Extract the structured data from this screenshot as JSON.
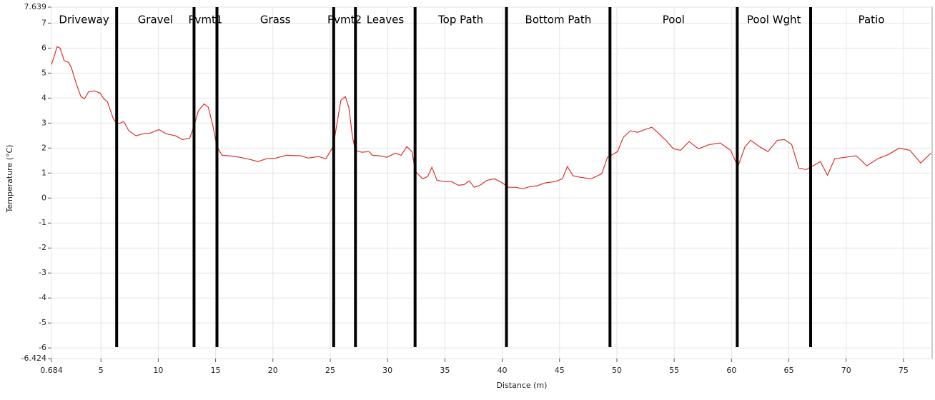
{
  "chart_data": {
    "type": "line",
    "xlabel": "Distance (m)",
    "ylabel": "Temperature (°C)",
    "xlim": [
      0.684,
      77.5
    ],
    "ylim": [
      -6.424,
      7.639
    ],
    "xticks": [
      0.684,
      5,
      10,
      15,
      20,
      25,
      30,
      35,
      40,
      45,
      50,
      55,
      60,
      65,
      70,
      75
    ],
    "yticks": [
      7.639,
      7,
      6,
      5,
      4,
      3,
      2,
      1,
      0,
      -1,
      -2,
      -3,
      -4,
      -5,
      -6,
      -6.424
    ],
    "grid": true,
    "color": "#d9312b",
    "x": [
      0.684,
      1.18,
      1.43,
      1.8,
      2.18,
      2.43,
      2.87,
      3.25,
      3.56,
      3.93,
      4.43,
      4.93,
      5.25,
      5.56,
      6.06,
      6.37,
      6.68,
      7.0,
      7.43,
      8.06,
      8.68,
      9.31,
      10.06,
      10.68,
      11.5,
      12.12,
      12.75,
      13.12,
      13.5,
      14.0,
      14.37,
      14.75,
      15.12,
      15.56,
      16.18,
      17.12,
      18.06,
      18.68,
      19.43,
      20.25,
      21.18,
      22.43,
      23.06,
      24.0,
      24.62,
      25.25,
      25.56,
      25.93,
      26.31,
      26.62,
      26.93,
      27.18,
      27.75,
      28.37,
      28.68,
      29.31,
      29.93,
      30.68,
      31.18,
      31.68,
      32.12,
      32.43,
      33.06,
      33.5,
      33.87,
      34.31,
      34.93,
      35.56,
      36.18,
      36.68,
      37.12,
      37.56,
      38.06,
      38.68,
      39.31,
      39.93,
      40.56,
      41.18,
      41.81,
      42.43,
      43.06,
      43.68,
      44.62,
      45.25,
      45.68,
      46.18,
      46.81,
      47.75,
      48.68,
      49.18,
      49.62,
      50.06,
      50.56,
      51.18,
      51.81,
      52.43,
      53.06,
      53.68,
      54.31,
      54.93,
      55.56,
      56.31,
      57.12,
      58.06,
      59.0,
      59.93,
      60.56,
      61.18,
      61.68,
      62.43,
      63.18,
      64.0,
      64.62,
      65.25,
      65.87,
      66.5,
      67.12,
      67.75,
      68.37,
      69.0,
      69.93,
      70.87,
      71.81,
      72.75,
      73.68,
      74.62,
      75.56,
      76.5,
      77.4
    ],
    "values": [
      5.34,
      6.06,
      6.0,
      5.49,
      5.43,
      5.2,
      4.54,
      4.06,
      3.97,
      4.26,
      4.29,
      4.2,
      3.97,
      3.86,
      3.2,
      2.97,
      3.0,
      3.06,
      2.69,
      2.49,
      2.57,
      2.6,
      2.74,
      2.57,
      2.49,
      2.34,
      2.4,
      2.89,
      3.49,
      3.77,
      3.63,
      2.91,
      2.06,
      1.71,
      1.69,
      1.63,
      1.54,
      1.46,
      1.57,
      1.6,
      1.71,
      1.69,
      1.6,
      1.66,
      1.57,
      2.06,
      2.91,
      3.91,
      4.06,
      3.63,
      2.49,
      1.91,
      1.83,
      1.86,
      1.71,
      1.69,
      1.63,
      1.8,
      1.71,
      2.06,
      1.86,
      1.06,
      0.77,
      0.86,
      1.23,
      0.71,
      0.66,
      0.66,
      0.51,
      0.54,
      0.69,
      0.43,
      0.51,
      0.71,
      0.77,
      0.63,
      0.43,
      0.43,
      0.37,
      0.46,
      0.49,
      0.6,
      0.66,
      0.77,
      1.26,
      0.89,
      0.83,
      0.77,
      0.97,
      1.63,
      1.74,
      1.86,
      2.43,
      2.69,
      2.63,
      2.74,
      2.83,
      2.57,
      2.29,
      1.97,
      1.91,
      2.26,
      1.97,
      2.14,
      2.2,
      1.91,
      1.26,
      2.06,
      2.31,
      2.06,
      1.86,
      2.31,
      2.34,
      2.14,
      1.2,
      1.14,
      1.29,
      1.46,
      0.91,
      1.57,
      1.63,
      1.69,
      1.29,
      1.57,
      1.74,
      2.0,
      1.91,
      1.4,
      1.8
    ],
    "regions": {
      "labels": [
        "Driveway",
        "Gravel",
        "Pvmt1",
        "Grass",
        "Pvmt2",
        "Leaves",
        "Top Path",
        "Bottom Path",
        "Pool",
        "Pool Wght",
        "Patio"
      ],
      "dividers": [
        6.37,
        13.12,
        15.12,
        25.3,
        27.2,
        32.4,
        40.37,
        49.4,
        60.5,
        66.9
      ],
      "color": "#000000"
    }
  }
}
